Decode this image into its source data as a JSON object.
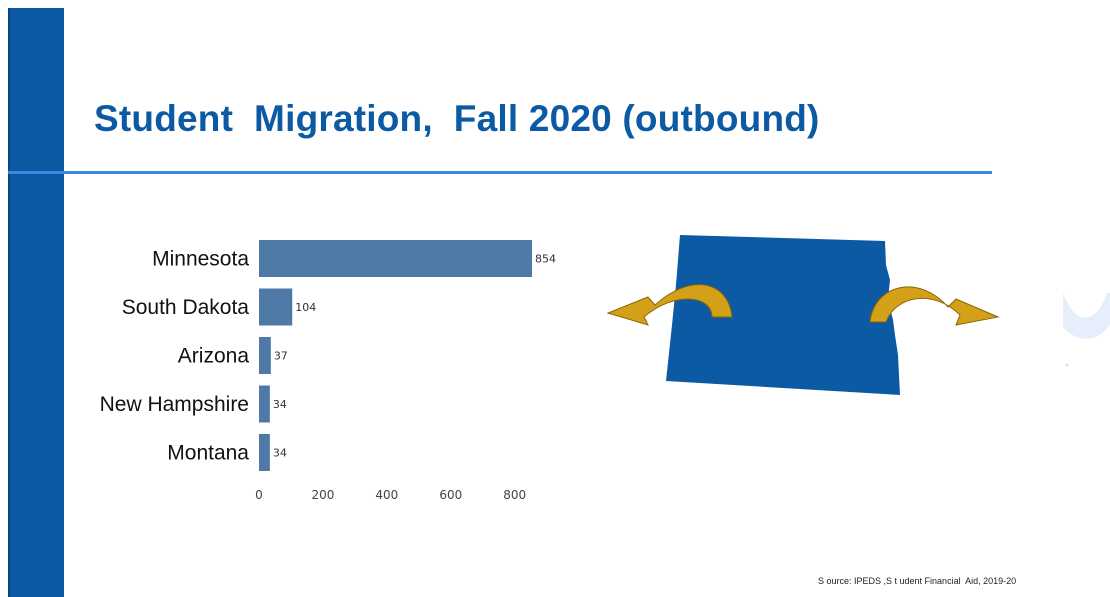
{
  "title": "Student  Migration,  Fall 2020 (outbound)",
  "source": "S ource: IPEDS ,S t udent Financial  Aid, 2019-20",
  "colors": {
    "accent": "#0b5aa3",
    "bar": "#4f79a7",
    "rule": "#3d87e0",
    "arrow": "#d4a017"
  },
  "chart_data": {
    "type": "bar",
    "orientation": "horizontal",
    "categories": [
      "Minnesota",
      "South Dakota",
      "Arizona",
      "New Hampshire",
      "Montana"
    ],
    "values": [
      854,
      104,
      37,
      34,
      34
    ],
    "xlim": [
      0,
      854
    ],
    "xticks": [
      0,
      200,
      400,
      600,
      800
    ],
    "grid": false,
    "legend": "none"
  }
}
